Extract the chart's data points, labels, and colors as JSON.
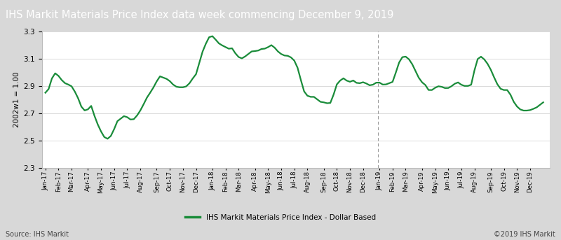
{
  "title": "IHS Markit Materials Price Index data week commencing December 9, 2019",
  "ylabel": "2002w1 = 1.00",
  "legend_label": "IHS Markit Materials Price Index - Dollar Based",
  "source_text": "Source: IHS Markit",
  "copyright_text": "©2019 IHS Markit",
  "line_color": "#1a8c3a",
  "title_bg_color": "#5a5a5a",
  "title_text_color": "#ffffff",
  "plot_bg_color": "#ffffff",
  "outer_bg_color": "#d8d8d8",
  "ylim": [
    2.3,
    3.3
  ],
  "yticks": [
    2.3,
    2.5,
    2.7,
    2.9,
    3.1,
    3.3
  ],
  "x_labels": [
    "Jan-17",
    "Feb-17",
    "Mar-17",
    "Apr-17",
    "May-17",
    "Jun-17",
    "Jul-17",
    "Aug-17",
    "Sep-17",
    "Oct-17",
    "Nov-17",
    "Dec-17",
    "Jan-18",
    "Feb-18",
    "Mar-18",
    "Apr-18",
    "May-18",
    "Jun-18",
    "Jul-18",
    "Aug-18",
    "Sep-18",
    "Oct-18",
    "Nov-18",
    "Dec-18",
    "Jan-19",
    "Feb-19",
    "Mar-19",
    "Apr-19",
    "May-19",
    "Jun-19",
    "Jul-19",
    "Aug-19",
    "Sep-19",
    "Oct-19",
    "Nov-19",
    "Dec-19"
  ],
  "values": [
    2.85,
    2.88,
    2.97,
    3.0,
    2.96,
    2.93,
    2.91,
    2.91,
    2.87,
    2.82,
    2.75,
    2.72,
    2.73,
    2.76,
    2.65,
    2.6,
    2.54,
    2.51,
    2.52,
    2.57,
    2.64,
    2.66,
    2.68,
    2.67,
    2.65,
    2.66,
    2.7,
    2.74,
    2.8,
    2.84,
    2.88,
    2.93,
    2.97,
    2.96,
    2.95,
    2.93,
    2.9,
    2.89,
    2.89,
    2.89,
    2.91,
    2.95,
    2.98,
    3.07,
    3.16,
    3.22,
    3.27,
    3.26,
    3.22,
    3.2,
    3.19,
    3.17,
    3.18,
    3.14,
    3.11,
    3.1,
    3.12,
    3.14,
    3.16,
    3.15,
    3.17,
    3.17,
    3.18,
    3.2,
    3.18,
    3.15,
    3.13,
    3.12,
    3.12,
    3.1,
    3.07,
    2.98,
    2.87,
    2.83,
    2.82,
    2.82,
    2.8,
    2.78,
    2.78,
    2.77,
    2.78,
    2.9,
    2.93,
    2.96,
    2.94,
    2.93,
    2.94,
    2.92,
    2.92,
    2.93,
    2.91,
    2.9,
    2.92,
    2.93,
    2.91,
    2.91,
    2.92,
    2.93,
    3.01,
    3.09,
    3.12,
    3.11,
    3.08,
    3.03,
    2.97,
    2.93,
    2.91,
    2.87,
    2.87,
    2.89,
    2.9,
    2.89,
    2.88,
    2.89,
    2.91,
    2.93,
    2.91,
    2.9,
    2.9,
    2.91,
    3.04,
    3.12,
    3.11,
    3.08,
    3.04,
    2.98,
    2.92,
    2.88,
    2.87,
    2.87,
    2.83,
    2.77,
    2.74,
    2.72,
    2.72,
    2.72,
    2.73,
    2.74,
    2.76,
    2.78
  ],
  "vline_at_month": 24,
  "line_width": 1.6,
  "weeks_per_month": [
    4,
    4,
    5,
    4,
    4,
    4,
    4,
    5,
    4,
    4,
    4,
    5,
    4,
    4,
    5,
    4,
    4,
    4,
    4,
    5,
    4,
    4,
    4,
    5,
    4,
    4,
    5,
    4,
    4,
    4,
    4,
    5,
    4,
    4,
    4,
    5
  ]
}
